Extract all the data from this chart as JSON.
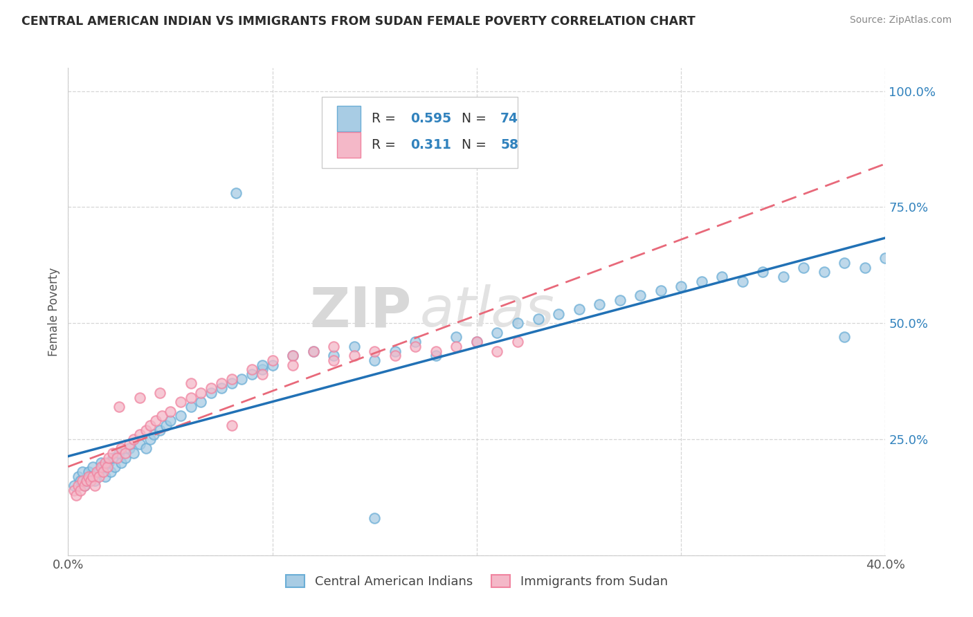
{
  "title": "CENTRAL AMERICAN INDIAN VS IMMIGRANTS FROM SUDAN FEMALE POVERTY CORRELATION CHART",
  "source": "Source: ZipAtlas.com",
  "ylabel": "Female Poverty",
  "x_min": 0.0,
  "x_max": 0.4,
  "y_min": 0.0,
  "y_max": 1.05,
  "color_blue": "#a8cce4",
  "color_blue_edge": "#6baed6",
  "color_pink": "#f4b8c8",
  "color_pink_edge": "#f084a0",
  "color_blue_text": "#3182bd",
  "color_line_blue": "#2171b5",
  "color_line_pink": "#e8697a",
  "watermark_top": "ZIP",
  "watermark_bot": "atlas",
  "legend1_label": "Central American Indians",
  "legend2_label": "Immigrants from Sudan",
  "blue_x": [
    0.003,
    0.005,
    0.006,
    0.007,
    0.008,
    0.009,
    0.01,
    0.011,
    0.012,
    0.013,
    0.015,
    0.016,
    0.017,
    0.018,
    0.02,
    0.021,
    0.022,
    0.023,
    0.025,
    0.026,
    0.028,
    0.03,
    0.032,
    0.035,
    0.038,
    0.04,
    0.042,
    0.045,
    0.048,
    0.05,
    0.055,
    0.06,
    0.065,
    0.07,
    0.075,
    0.08,
    0.085,
    0.09,
    0.095,
    0.1,
    0.11,
    0.12,
    0.13,
    0.14,
    0.15,
    0.16,
    0.17,
    0.18,
    0.19,
    0.2,
    0.21,
    0.22,
    0.23,
    0.24,
    0.25,
    0.26,
    0.27,
    0.28,
    0.29,
    0.3,
    0.31,
    0.32,
    0.33,
    0.34,
    0.35,
    0.36,
    0.37,
    0.38,
    0.39,
    0.4,
    0.082,
    0.095,
    0.15,
    0.38
  ],
  "blue_y": [
    0.15,
    0.17,
    0.16,
    0.18,
    0.15,
    0.16,
    0.18,
    0.17,
    0.19,
    0.16,
    0.18,
    0.2,
    0.19,
    0.17,
    0.2,
    0.18,
    0.21,
    0.19,
    0.22,
    0.2,
    0.21,
    0.23,
    0.22,
    0.24,
    0.23,
    0.25,
    0.26,
    0.27,
    0.28,
    0.29,
    0.3,
    0.32,
    0.33,
    0.35,
    0.36,
    0.37,
    0.38,
    0.39,
    0.4,
    0.41,
    0.43,
    0.44,
    0.43,
    0.45,
    0.08,
    0.44,
    0.46,
    0.43,
    0.47,
    0.46,
    0.48,
    0.5,
    0.51,
    0.52,
    0.53,
    0.54,
    0.55,
    0.56,
    0.57,
    0.58,
    0.59,
    0.6,
    0.59,
    0.61,
    0.6,
    0.62,
    0.61,
    0.63,
    0.62,
    0.64,
    0.78,
    0.41,
    0.42,
    0.47
  ],
  "pink_x": [
    0.003,
    0.004,
    0.005,
    0.006,
    0.007,
    0.008,
    0.009,
    0.01,
    0.011,
    0.012,
    0.013,
    0.014,
    0.015,
    0.016,
    0.017,
    0.018,
    0.019,
    0.02,
    0.022,
    0.024,
    0.026,
    0.028,
    0.03,
    0.032,
    0.035,
    0.038,
    0.04,
    0.043,
    0.046,
    0.05,
    0.055,
    0.06,
    0.065,
    0.07,
    0.075,
    0.08,
    0.09,
    0.1,
    0.11,
    0.12,
    0.13,
    0.14,
    0.15,
    0.16,
    0.17,
    0.18,
    0.19,
    0.2,
    0.21,
    0.22,
    0.025,
    0.035,
    0.045,
    0.06,
    0.08,
    0.095,
    0.11,
    0.13
  ],
  "pink_y": [
    0.14,
    0.13,
    0.15,
    0.14,
    0.16,
    0.15,
    0.16,
    0.17,
    0.16,
    0.17,
    0.15,
    0.18,
    0.17,
    0.19,
    0.18,
    0.2,
    0.19,
    0.21,
    0.22,
    0.21,
    0.23,
    0.22,
    0.24,
    0.25,
    0.26,
    0.27,
    0.28,
    0.29,
    0.3,
    0.31,
    0.33,
    0.34,
    0.35,
    0.36,
    0.37,
    0.28,
    0.4,
    0.42,
    0.43,
    0.44,
    0.45,
    0.43,
    0.44,
    0.43,
    0.45,
    0.44,
    0.45,
    0.46,
    0.44,
    0.46,
    0.32,
    0.34,
    0.35,
    0.37,
    0.38,
    0.39,
    0.41,
    0.42
  ]
}
